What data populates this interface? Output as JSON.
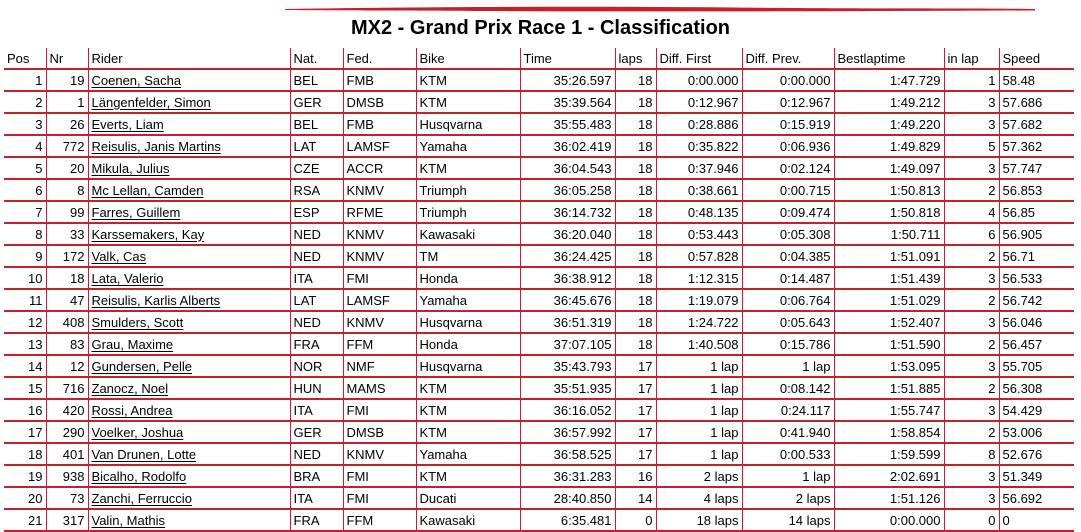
{
  "title": "MX2 - Grand Prix Race 1 - Classification",
  "colors": {
    "accent": "#c8202a"
  },
  "columns": [
    "Pos",
    "Nr",
    "Rider",
    "Nat.",
    "Fed.",
    "Bike",
    "Time",
    "laps",
    "Diff. First",
    "Diff. Prev.",
    "Bestlaptime",
    "in lap",
    "Speed"
  ],
  "rows": [
    [
      "1",
      "19",
      "Coenen, Sacha",
      "BEL",
      "FMB",
      "KTM",
      "35:26.597",
      "18",
      "0:00.000",
      "0:00.000",
      "1:47.729",
      "1",
      "58.48"
    ],
    [
      "2",
      "1",
      "Längenfelder, Simon",
      "GER",
      "DMSB",
      "KTM",
      "35:39.564",
      "18",
      "0:12.967",
      "0:12.967",
      "1:49.212",
      "3",
      "57.686"
    ],
    [
      "3",
      "26",
      "Everts, Liam",
      "BEL",
      "FMB",
      "Husqvarna",
      "35:55.483",
      "18",
      "0:28.886",
      "0:15.919",
      "1:49.220",
      "3",
      "57.682"
    ],
    [
      "4",
      "772",
      "Reisulis, Janis Martins",
      "LAT",
      "LAMSF",
      "Yamaha",
      "36:02.419",
      "18",
      "0:35.822",
      "0:06.936",
      "1:49.829",
      "5",
      "57.362"
    ],
    [
      "5",
      "20",
      "Mikula, Julius",
      "CZE",
      "ACCR",
      "KTM",
      "36:04.543",
      "18",
      "0:37.946",
      "0:02.124",
      "1:49.097",
      "3",
      "57.747"
    ],
    [
      "6",
      "8",
      "Mc Lellan, Camden",
      "RSA",
      "KNMV",
      "Triumph",
      "36:05.258",
      "18",
      "0:38.661",
      "0:00.715",
      "1:50.813",
      "2",
      "56.853"
    ],
    [
      "7",
      "99",
      "Farres, Guillem",
      "ESP",
      "RFME",
      "Triumph",
      "36:14.732",
      "18",
      "0:48.135",
      "0:09.474",
      "1:50.818",
      "4",
      "56.85"
    ],
    [
      "8",
      "33",
      "Karssemakers, Kay",
      "NED",
      "KNMV",
      "Kawasaki",
      "36:20.040",
      "18",
      "0:53.443",
      "0:05.308",
      "1:50.711",
      "6",
      "56.905"
    ],
    [
      "9",
      "172",
      "Valk, Cas",
      "NED",
      "KNMV",
      "TM",
      "36:24.425",
      "18",
      "0:57.828",
      "0:04.385",
      "1:51.091",
      "2",
      "56.71"
    ],
    [
      "10",
      "18",
      "Lata, Valerio",
      "ITA",
      "FMI",
      "Honda",
      "36:38.912",
      "18",
      "1:12.315",
      "0:14.487",
      "1:51.439",
      "3",
      "56.533"
    ],
    [
      "11",
      "47",
      "Reisulis, Karlis Alberts",
      "LAT",
      "LAMSF",
      "Yamaha",
      "36:45.676",
      "18",
      "1:19.079",
      "0:06.764",
      "1:51.029",
      "2",
      "56.742"
    ],
    [
      "12",
      "408",
      "Smulders, Scott",
      "NED",
      "KNMV",
      "Husqvarna",
      "36:51.319",
      "18",
      "1:24.722",
      "0:05.643",
      "1:52.407",
      "3",
      "56.046"
    ],
    [
      "13",
      "83",
      "Grau, Maxime",
      "FRA",
      "FFM",
      "Honda",
      "37:07.105",
      "18",
      "1:40.508",
      "0:15.786",
      "1:51.590",
      "2",
      "56.457"
    ],
    [
      "14",
      "12",
      "Gundersen, Pelle",
      "NOR",
      "NMF",
      "Husqvarna",
      "35:43.793",
      "17",
      "1 lap",
      "1 lap",
      "1:53.095",
      "3",
      "55.705"
    ],
    [
      "15",
      "716",
      "Zanocz, Noel",
      "HUN",
      "MAMS",
      "KTM",
      "35:51.935",
      "17",
      "1 lap",
      "0:08.142",
      "1:51.885",
      "2",
      "56.308"
    ],
    [
      "16",
      "420",
      "Rossi, Andrea",
      "ITA",
      "FMI",
      "KTM",
      "36:16.052",
      "17",
      "1 lap",
      "0:24.117",
      "1:55.747",
      "3",
      "54.429"
    ],
    [
      "17",
      "290",
      "Voelker, Joshua",
      "GER",
      "DMSB",
      "KTM",
      "36:57.992",
      "17",
      "1 lap",
      "0:41.940",
      "1:58.854",
      "2",
      "53.006"
    ],
    [
      "18",
      "401",
      "Van Drunen, Lotte",
      "NED",
      "KNMV",
      "Yamaha",
      "36:58.525",
      "17",
      "1 lap",
      "0:00.533",
      "1:59.599",
      "8",
      "52.676"
    ],
    [
      "19",
      "938",
      "Bicalho, Rodolfo",
      "BRA",
      "FMI",
      "KTM",
      "36:31.283",
      "16",
      "2 laps",
      "1 lap",
      "2:02.691",
      "3",
      "51.349"
    ],
    [
      "20",
      "73",
      "Zanchi, Ferruccio",
      "ITA",
      "FMI",
      "Ducati",
      "28:40.850",
      "14",
      "4 laps",
      "2 laps",
      "1:51.126",
      "3",
      "56.692"
    ],
    [
      "21",
      "317",
      "Valin, Mathis",
      "FRA",
      "FFM",
      "Kawasaki",
      "6:35.481",
      "0",
      "18 laps",
      "14 laps",
      "0:00.000",
      "0",
      "0"
    ]
  ]
}
